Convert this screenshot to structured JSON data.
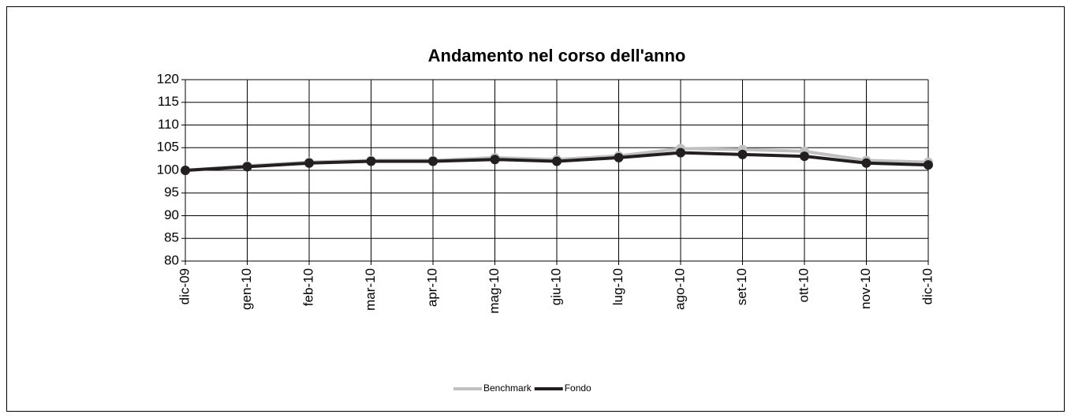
{
  "chart_data": {
    "type": "line",
    "title": "Andamento nel corso dell'anno",
    "categories": [
      "dic-09",
      "gen-10",
      "feb-10",
      "mar-10",
      "apr-10",
      "mag-10",
      "giu-10",
      "lug-10",
      "ago-10",
      "set-10",
      "ott-10",
      "nov-10",
      "dic-10"
    ],
    "series": [
      {
        "name": "Benchmark",
        "color": "#c0c0c0",
        "values": [
          100,
          101,
          101.8,
          102.2,
          102.2,
          102.8,
          102.4,
          103.2,
          104.8,
          104.6,
          104.2,
          102.2,
          101.8
        ]
      },
      {
        "name": "Fondo",
        "color": "#231f20",
        "values": [
          100,
          100.8,
          101.6,
          102,
          102,
          102.4,
          102,
          102.8,
          103.9,
          103.5,
          103.1,
          101.6,
          101.2
        ]
      }
    ],
    "ylim": [
      80,
      120
    ],
    "yticks": [
      80,
      85,
      90,
      95,
      100,
      105,
      110,
      115,
      120
    ],
    "grid": true,
    "legend": "bottom"
  }
}
